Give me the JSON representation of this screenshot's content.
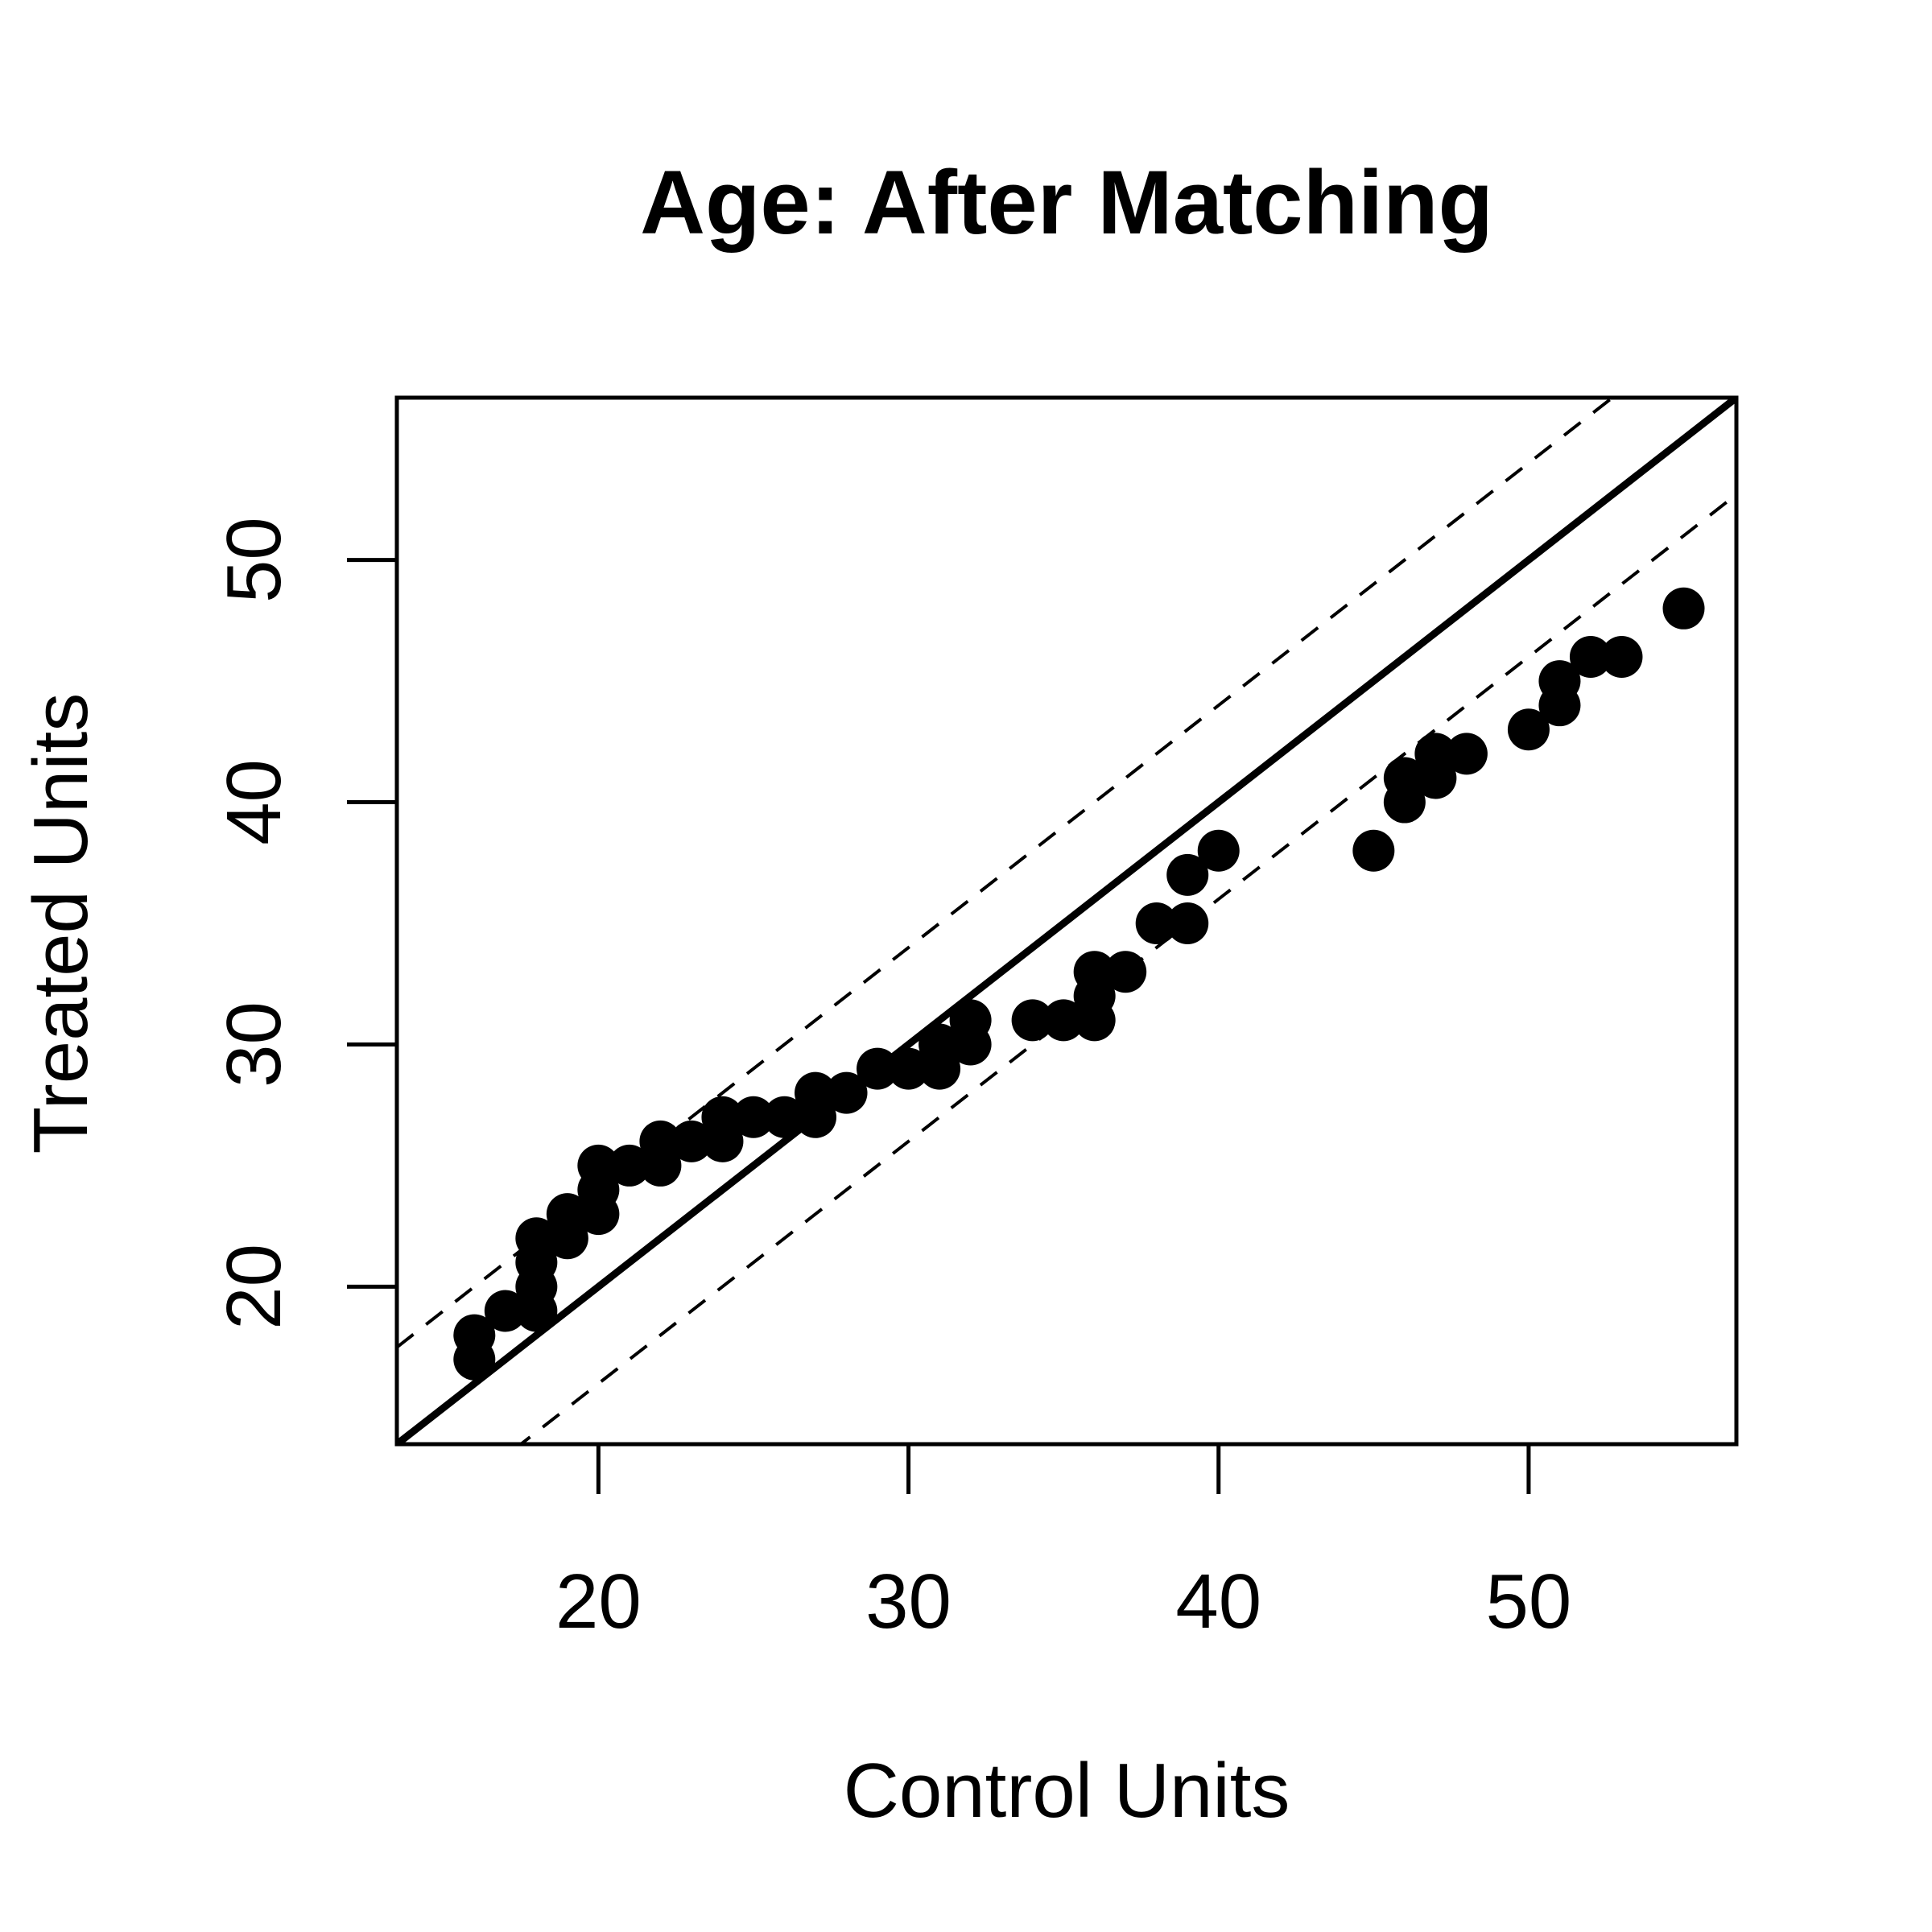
{
  "chart_data": {
    "type": "scatter",
    "title": "Age: After Matching",
    "xlabel": "Control Units",
    "ylabel": "Treated Units",
    "xlim": [
      13.5,
      56.7
    ],
    "ylim": [
      13.5,
      56.7
    ],
    "x_ticks": [
      20,
      30,
      40,
      50
    ],
    "y_ticks": [
      20,
      30,
      40,
      50
    ],
    "x_tick_labels": [
      "20",
      "30",
      "40",
      "50"
    ],
    "y_tick_labels": [
      "20",
      "30",
      "40",
      "50"
    ],
    "grid": false,
    "reference_lines": [
      {
        "style": "solid",
        "intercept": 0,
        "slope": 1
      },
      {
        "style": "dashed",
        "intercept": 4,
        "slope": 1
      },
      {
        "style": "dashed",
        "intercept": -4,
        "slope": 1
      }
    ],
    "points": [
      [
        16,
        17
      ],
      [
        16,
        18
      ],
      [
        17,
        19
      ],
      [
        18,
        19
      ],
      [
        18,
        20
      ],
      [
        18,
        21
      ],
      [
        18,
        22
      ],
      [
        19,
        22
      ],
      [
        19,
        23
      ],
      [
        20,
        23
      ],
      [
        20,
        24
      ],
      [
        20,
        25
      ],
      [
        21,
        25
      ],
      [
        22,
        25
      ],
      [
        22,
        26
      ],
      [
        23,
        26
      ],
      [
        24,
        26
      ],
      [
        24,
        27
      ],
      [
        25,
        27
      ],
      [
        26,
        27
      ],
      [
        27,
        27
      ],
      [
        27,
        28
      ],
      [
        28,
        28
      ],
      [
        29,
        29
      ],
      [
        30,
        29
      ],
      [
        31,
        29
      ],
      [
        31,
        30
      ],
      [
        32,
        30
      ],
      [
        32,
        31
      ],
      [
        34,
        31
      ],
      [
        35,
        31
      ],
      [
        36,
        31
      ],
      [
        36,
        32
      ],
      [
        36,
        33
      ],
      [
        37,
        33
      ],
      [
        38,
        35
      ],
      [
        39,
        35
      ],
      [
        39,
        37
      ],
      [
        40,
        38
      ],
      [
        45,
        38
      ],
      [
        46,
        40
      ],
      [
        46,
        41
      ],
      [
        47,
        41
      ],
      [
        47,
        42
      ],
      [
        48,
        42
      ],
      [
        50,
        43
      ],
      [
        51,
        44
      ],
      [
        51,
        45
      ],
      [
        52,
        46
      ],
      [
        53,
        46
      ],
      [
        55,
        48
      ]
    ],
    "colors": {
      "points": "#000000",
      "lines": "#000000",
      "frame": "#000000"
    }
  }
}
